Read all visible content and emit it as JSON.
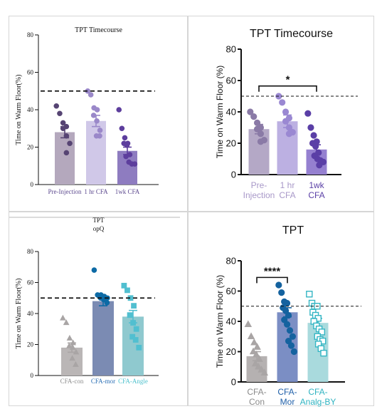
{
  "charts": [
    {
      "title": "TPT Timecourse",
      "ylabel": "Time on Warm Floor(%)",
      "tick_labels": [
        "0",
        "20",
        "40",
        "60",
        "80"
      ],
      "category_labels": [
        "Pre-Injection",
        "1 hr CFA",
        "1wk CFA"
      ],
      "colors": {
        "bars": [
          "#b4a8bd",
          "#d0c8e8",
          "#8e7cc0"
        ],
        "points": [
          "#564473",
          "#9a88c9",
          "#5d3e9d"
        ]
      }
    },
    {
      "title": "TPT Timecourse",
      "ylabel": "Time on Warm Floor (%)",
      "tick_labels": [
        "0",
        "20",
        "40",
        "60",
        "80"
      ],
      "category_labels": [
        [
          "Pre-",
          "Injection"
        ],
        [
          "1 hr",
          "CFA"
        ],
        [
          "1wk",
          "CFA"
        ]
      ],
      "significance": "*",
      "colors": {
        "bars": [
          "#b4a8c6",
          "#bcb0e2",
          "#9580d0"
        ],
        "points": [
          "#8a7aa6",
          "#9a88d2",
          "#5a3fa6"
        ]
      }
    },
    {
      "title": [
        "TPT",
        "opQ"
      ],
      "ylabel": "Time on Warm Floor(%)",
      "tick_labels": [
        "0",
        "20",
        "40",
        "60",
        "80"
      ],
      "category_labels": [
        "CFA-con",
        "CFA-mor",
        "CFA-Angle"
      ],
      "colors": {
        "bars": [
          "#bab6b6",
          "#7b8bb3",
          "#8fc9cf"
        ],
        "points": [
          "#a9a5a5",
          "#0d6aa5",
          "#51bfd0"
        ],
        "labels": [
          "#8c8c8c",
          "#2a6fb5",
          "#4ec1cd"
        ]
      }
    },
    {
      "title": "TPT",
      "ylabel": "Time on Warm Floor (%)",
      "tick_labels": [
        "0",
        "20",
        "40",
        "60",
        "80"
      ],
      "category_labels": [
        [
          "CFA-",
          "Con"
        ],
        [
          "CFA-",
          "Mor"
        ],
        [
          "CFA-",
          "Analg-BY"
        ]
      ],
      "significance": "****",
      "colors": {
        "bars": [
          "#b5b1b1",
          "#7b8ec4",
          "#a9dadd"
        ],
        "points": [
          "#a9a5a5",
          "#14629f",
          "#34b6c4"
        ],
        "labels": [
          "#8a8a8a",
          "#1f5fa8",
          "#2fb3c1"
        ]
      }
    }
  ],
  "chart_data": [
    {
      "type": "bar",
      "categories": [
        "Pre-Injection",
        "1 hr CFA",
        "1wk CFA"
      ],
      "values": [
        28,
        34,
        18
      ],
      "errors": [
        3,
        3,
        2
      ],
      "points": [
        [
          42,
          38,
          33,
          31,
          30,
          26,
          22,
          17
        ],
        [
          50,
          48,
          41,
          40,
          37,
          34,
          29,
          26,
          26
        ],
        [
          40,
          30,
          25,
          22,
          22,
          21,
          16,
          15,
          12,
          11,
          11
        ]
      ],
      "reference_line": 50,
      "ylim": [
        0,
        80
      ]
    },
    {
      "type": "bar",
      "categories": [
        "Pre-Injection",
        "1 hr CFA",
        "1wk CFA"
      ],
      "values": [
        29,
        34,
        16
      ],
      "errors": [
        3,
        4,
        3
      ],
      "points": [
        [
          40,
          37,
          33,
          30,
          29,
          26,
          22,
          21
        ],
        [
          50,
          46,
          40,
          36,
          34,
          30,
          27,
          26
        ],
        [
          39,
          30,
          25,
          21,
          20,
          18,
          14,
          12,
          10,
          9,
          8,
          6
        ]
      ],
      "reference_line": 50,
      "ylim": [
        0,
        80
      ]
    },
    {
      "type": "bar",
      "categories": [
        "CFA-con",
        "CFA-mor",
        "CFA-Angle"
      ],
      "values": [
        18,
        48,
        38
      ],
      "errors": [
        3,
        3,
        4
      ],
      "points": [
        [
          37,
          34,
          24,
          21,
          19,
          18,
          15,
          11,
          7
        ],
        [
          68,
          52,
          52,
          51,
          50,
          50,
          50,
          49,
          47
        ],
        [
          58,
          55,
          50,
          45,
          39,
          34,
          30,
          25,
          23,
          18
        ]
      ],
      "reference_line": 50,
      "ylim": [
        0,
        80
      ]
    },
    {
      "type": "bar",
      "categories": [
        "CFA-Con",
        "CFA-Mor",
        "CFA-Analg-BY"
      ],
      "values": [
        17,
        46,
        39
      ],
      "errors": [
        3,
        3,
        3
      ],
      "points": [
        [
          38,
          30,
          26,
          23,
          20,
          18,
          15,
          12,
          10,
          8,
          6
        ],
        [
          64,
          59,
          53,
          52,
          49,
          47,
          44,
          41,
          38,
          34,
          30,
          27,
          24,
          20
        ],
        [
          58,
          52,
          50,
          50,
          46,
          44,
          42,
          40,
          37,
          35,
          33,
          30,
          28,
          27,
          25,
          22,
          19
        ]
      ],
      "reference_line": 50,
      "ylim": [
        0,
        80
      ]
    }
  ]
}
